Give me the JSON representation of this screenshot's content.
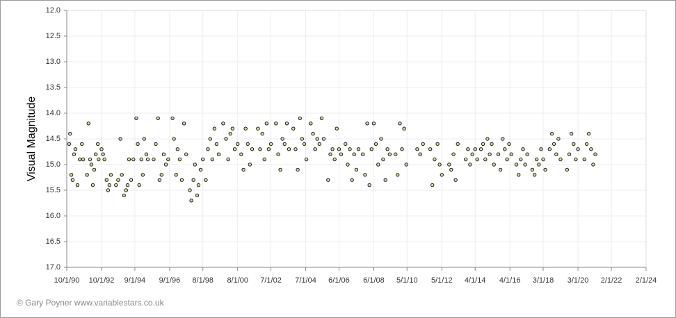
{
  "chart_data": {
    "type": "scatter",
    "ylabel": "Visual Magnitude",
    "annotation": "© Gary Poyner www.variablestars.co.uk",
    "color": "#d9dca2",
    "edge_color": "#1a1a1a",
    "grid": true,
    "xlim": [
      "1990-10-01",
      "2024-02-01"
    ],
    "ylim": [
      17,
      12
    ],
    "yticks": [
      {
        "value": 12,
        "label": "12.0"
      },
      {
        "value": 12.5,
        "label": "12.5"
      },
      {
        "value": 13,
        "label": "13.0"
      },
      {
        "value": 13.5,
        "label": "13.5"
      },
      {
        "value": 14,
        "label": "14.0"
      },
      {
        "value": 14.5,
        "label": "14.5"
      },
      {
        "value": 15,
        "label": "15.0"
      },
      {
        "value": 15.5,
        "label": "15.5"
      },
      {
        "value": 16,
        "label": "16.0"
      },
      {
        "value": 16.5,
        "label": "16.5"
      },
      {
        "value": 17,
        "label": "17.0"
      }
    ],
    "xticks": [
      {
        "value": "1990-10-01",
        "label": "10/1/90"
      },
      {
        "value": "1992-10-01",
        "label": "10/1/92"
      },
      {
        "value": "1994-09-01",
        "label": "9/1/94"
      },
      {
        "value": "1996-09-01",
        "label": "9/1/96"
      },
      {
        "value": "1998-08-01",
        "label": "8/1/98"
      },
      {
        "value": "2000-08-01",
        "label": "8/1/00"
      },
      {
        "value": "2002-07-01",
        "label": "7/1/02"
      },
      {
        "value": "2004-07-01",
        "label": "7/1/04"
      },
      {
        "value": "2006-06-01",
        "label": "6/1/06"
      },
      {
        "value": "2008-06-01",
        "label": "6/1/08"
      },
      {
        "value": "2010-05-01",
        "label": "5/1/10"
      },
      {
        "value": "2012-05-01",
        "label": "5/1/12"
      },
      {
        "value": "2014-04-01",
        "label": "4/1/14"
      },
      {
        "value": "2016-04-01",
        "label": "4/1/16"
      },
      {
        "value": "2018-03-01",
        "label": "3/1/18"
      },
      {
        "value": "2020-03-01",
        "label": "3/1/20"
      },
      {
        "value": "2022-02-01",
        "label": "2/1/22"
      },
      {
        "value": "2024-02-01",
        "label": "2/1/24"
      }
    ],
    "x": [
      "1990-11-20",
      "1990-12-10",
      "1991-01-05",
      "1991-02-01",
      "1991-03-01",
      "1991-04-01",
      "1991-05-15",
      "1991-07-01",
      "1991-08-15",
      "1991-09-10",
      "1991-12-01",
      "1992-01-01",
      "1992-02-01",
      "1992-03-01",
      "1992-04-01",
      "1992-05-01",
      "1992-06-01",
      "1992-07-15",
      "1992-08-01",
      "1992-10-01",
      "1992-11-01",
      "1992-12-01",
      "1993-01-15",
      "1993-02-15",
      "1993-03-15",
      "1993-04-15",
      "1993-08-01",
      "1993-09-15",
      "1993-11-01",
      "1993-12-01",
      "1994-01-15",
      "1994-03-01",
      "1994-04-01",
      "1994-05-01",
      "1994-06-15",
      "1994-08-01",
      "1994-10-01",
      "1994-11-01",
      "1994-12-01",
      "1995-01-15",
      "1995-02-15",
      "1995-03-15",
      "1995-05-01",
      "1995-06-01",
      "1995-10-01",
      "1995-11-15",
      "1996-01-01",
      "1996-02-01",
      "1996-03-15",
      "1996-05-01",
      "1996-06-15",
      "1996-08-01",
      "1996-11-01",
      "1996-12-01",
      "1997-01-15",
      "1997-02-15",
      "1997-04-01",
      "1997-05-15",
      "1997-07-01",
      "1997-08-15",
      "1997-11-01",
      "1997-12-01",
      "1998-01-15",
      "1998-02-15",
      "1998-04-01",
      "1998-05-01",
      "1998-06-15",
      "1998-08-01",
      "1998-10-01",
      "1998-11-15",
      "1999-01-01",
      "1999-02-15",
      "1999-04-01",
      "1999-05-15",
      "1999-07-01",
      "1999-10-01",
      "1999-12-01",
      "2000-01-15",
      "2000-03-01",
      "2000-04-15",
      "2000-06-01",
      "2000-08-01",
      "2000-10-15",
      "2000-12-01",
      "2001-01-15",
      "2001-03-01",
      "2001-04-15",
      "2001-06-01",
      "2001-10-01",
      "2001-11-15",
      "2002-01-01",
      "2002-02-15",
      "2002-04-01",
      "2002-05-15",
      "2002-07-01",
      "2002-10-15",
      "2002-12-01",
      "2003-01-15",
      "2003-03-01",
      "2003-04-15",
      "2003-06-01",
      "2003-07-15",
      "2003-10-15",
      "2003-12-01",
      "2004-01-15",
      "2004-03-01",
      "2004-04-15",
      "2004-06-01",
      "2004-07-15",
      "2004-10-15",
      "2004-12-01",
      "2005-01-15",
      "2005-03-01",
      "2005-04-15",
      "2005-06-01",
      "2005-07-15",
      "2005-10-15",
      "2005-12-01",
      "2006-01-15",
      "2006-03-01",
      "2006-04-15",
      "2006-06-01",
      "2006-07-15",
      "2006-10-15",
      "2006-12-01",
      "2007-01-15",
      "2007-03-01",
      "2007-04-15",
      "2007-06-01",
      "2007-07-15",
      "2007-10-15",
      "2007-12-01",
      "2008-01-15",
      "2008-03-01",
      "2008-04-15",
      "2008-06-01",
      "2008-07-15",
      "2008-09-01",
      "2008-11-01",
      "2008-12-15",
      "2009-02-01",
      "2009-03-15",
      "2009-05-01",
      "2009-09-01",
      "2009-10-15",
      "2009-12-01",
      "2010-01-15",
      "2010-03-01",
      "2010-04-15",
      "2010-12-01",
      "2011-02-01",
      "2011-04-01",
      "2011-09-01",
      "2011-10-15",
      "2011-12-01",
      "2012-02-01",
      "2012-03-15",
      "2012-05-01",
      "2012-10-01",
      "2012-11-15",
      "2013-01-01",
      "2013-02-15",
      "2013-04-01",
      "2013-09-15",
      "2013-11-01",
      "2013-12-15",
      "2014-02-01",
      "2014-04-01",
      "2014-05-15",
      "2014-08-01",
      "2014-09-15",
      "2014-11-01",
      "2014-12-15",
      "2015-02-01",
      "2015-03-15",
      "2015-05-01",
      "2015-08-01",
      "2015-09-15",
      "2015-11-01",
      "2015-12-15",
      "2016-02-01",
      "2016-03-15",
      "2016-05-01",
      "2016-08-15",
      "2016-10-01",
      "2016-11-15",
      "2017-01-01",
      "2017-02-15",
      "2017-04-01",
      "2017-07-15",
      "2017-09-01",
      "2017-10-15",
      "2017-12-01",
      "2018-01-15",
      "2018-03-01",
      "2018-04-15",
      "2018-07-15",
      "2018-09-01",
      "2018-10-15",
      "2018-12-01",
      "2019-01-15",
      "2019-03-01",
      "2019-07-15",
      "2019-09-01",
      "2019-10-15",
      "2019-12-01",
      "2020-01-15",
      "2020-03-01",
      "2020-07-15",
      "2020-09-01",
      "2020-10-15",
      "2020-12-01",
      "2021-01-15",
      "2021-03-01"
    ],
    "values": [
      14.6,
      14.4,
      15.2,
      15.3,
      14.8,
      14.7,
      15.4,
      14.9,
      14.6,
      14.9,
      15.2,
      14.2,
      14.9,
      15.0,
      15.4,
      15.1,
      14.8,
      14.6,
      14.9,
      14.7,
      14.8,
      14.9,
      15.3,
      15.5,
      15.4,
      15.2,
      15.4,
      15.3,
      14.5,
      15.2,
      15.6,
      15.5,
      15.4,
      14.9,
      15.3,
      14.9,
      14.1,
      14.6,
      15.4,
      14.9,
      15.2,
      14.5,
      14.8,
      14.9,
      14.9,
      14.6,
      14.1,
      15.3,
      15.2,
      14.8,
      15.0,
      14.9,
      14.1,
      14.5,
      15.2,
      14.7,
      14.9,
      15.3,
      14.2,
      14.8,
      15.5,
      15.7,
      15.3,
      15.0,
      15.6,
      15.4,
      15.1,
      14.9,
      15.3,
      14.7,
      14.5,
      14.9,
      14.3,
      14.6,
      14.8,
      14.2,
      14.5,
      14.9,
      14.4,
      14.3,
      14.7,
      14.6,
      14.8,
      15.1,
      14.3,
      14.6,
      15.0,
      14.7,
      14.3,
      14.7,
      14.4,
      14.9,
      14.2,
      14.7,
      14.6,
      14.2,
      14.8,
      15.1,
      14.5,
      14.6,
      14.2,
      14.7,
      14.3,
      14.7,
      15.1,
      14.1,
      14.5,
      14.6,
      14.9,
      14.2,
      14.4,
      14.7,
      14.5,
      14.6,
      14.1,
      14.5,
      15.3,
      14.8,
      14.7,
      14.9,
      14.3,
      14.7,
      14.8,
      14.6,
      15.0,
      14.7,
      15.3,
      14.8,
      15.1,
      14.7,
      14.8,
      15.2,
      14.2,
      15.4,
      14.7,
      14.2,
      14.6,
      15.0,
      14.5,
      14.9,
      15.3,
      14.7,
      14.8,
      14.8,
      15.2,
      14.2,
      14.7,
      14.3,
      15.0,
      14.7,
      14.8,
      14.6,
      14.7,
      15.4,
      14.9,
      14.6,
      15.0,
      15.2,
      15.0,
      15.1,
      14.8,
      15.3,
      14.6,
      14.9,
      14.7,
      15.0,
      14.8,
      14.7,
      14.9,
      14.7,
      14.6,
      14.9,
      14.5,
      14.8,
      14.6,
      15.0,
      14.8,
      15.1,
      14.5,
      14.7,
      14.9,
      14.6,
      14.8,
      15.0,
      15.2,
      14.9,
      14.7,
      15.0,
      14.8,
      15.1,
      15.2,
      14.9,
      15.0,
      14.7,
      14.9,
      15.1,
      14.7,
      14.4,
      14.6,
      14.8,
      14.5,
      14.9,
      15.1,
      14.8,
      14.4,
      14.6,
      14.9,
      14.7,
      14.9,
      14.6,
      14.4,
      14.7,
      15.0,
      14.8
    ]
  }
}
